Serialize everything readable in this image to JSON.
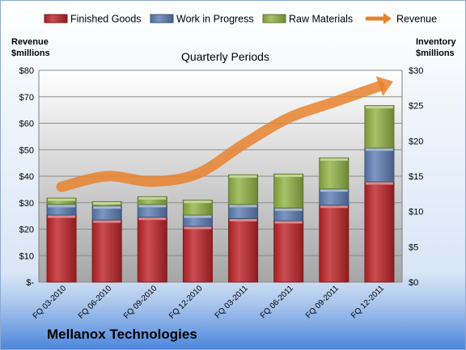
{
  "company": "Mellanox Technologies",
  "colors": {
    "finished": "#C0262A",
    "wip": "#5F80B6",
    "raw": "#93B448",
    "revenue": "#E8822E"
  },
  "chart_data": {
    "type": "bar",
    "title": "Quarterly Periods",
    "categories": [
      "FQ 03-2010",
      "FQ 06-2010",
      "FQ 09-2010",
      "FQ 12-2010",
      "FQ 03-2011",
      "FQ 06-2011",
      "FQ 09-2011",
      "FQ 12-2011"
    ],
    "stacked": true,
    "series": [
      {
        "name": "Finished Goods",
        "axis": "right",
        "values": [
          9.5,
          8.8,
          9.2,
          7.9,
          9.0,
          8.7,
          10.9,
          14.2
        ]
      },
      {
        "name": "Work in Progress",
        "axis": "right",
        "values": [
          1.5,
          2.0,
          1.8,
          1.6,
          2.0,
          1.8,
          2.3,
          4.8
        ]
      },
      {
        "name": "Raw Materials",
        "axis": "right",
        "values": [
          0.9,
          0.6,
          1.1,
          2.1,
          4.2,
          4.8,
          4.4,
          6.0
        ]
      },
      {
        "name": "Revenue",
        "type": "line",
        "axis": "left",
        "values": [
          36,
          40,
          38,
          41,
          52,
          62,
          68,
          74
        ]
      }
    ],
    "y_left": {
      "label": "Revenue\n$millions",
      "ylim": [
        0,
        80
      ],
      "ticks": [
        "$-",
        "$10",
        "$20",
        "$30",
        "$40",
        "$50",
        "$60",
        "$70",
        "$80"
      ]
    },
    "y_right": {
      "label": "Inventory\n$millions",
      "ylim": [
        0,
        30
      ],
      "ticks": [
        "$0",
        "$5",
        "$10",
        "$15",
        "$20",
        "$25",
        "$30"
      ]
    },
    "grid": true,
    "legend": "top"
  }
}
